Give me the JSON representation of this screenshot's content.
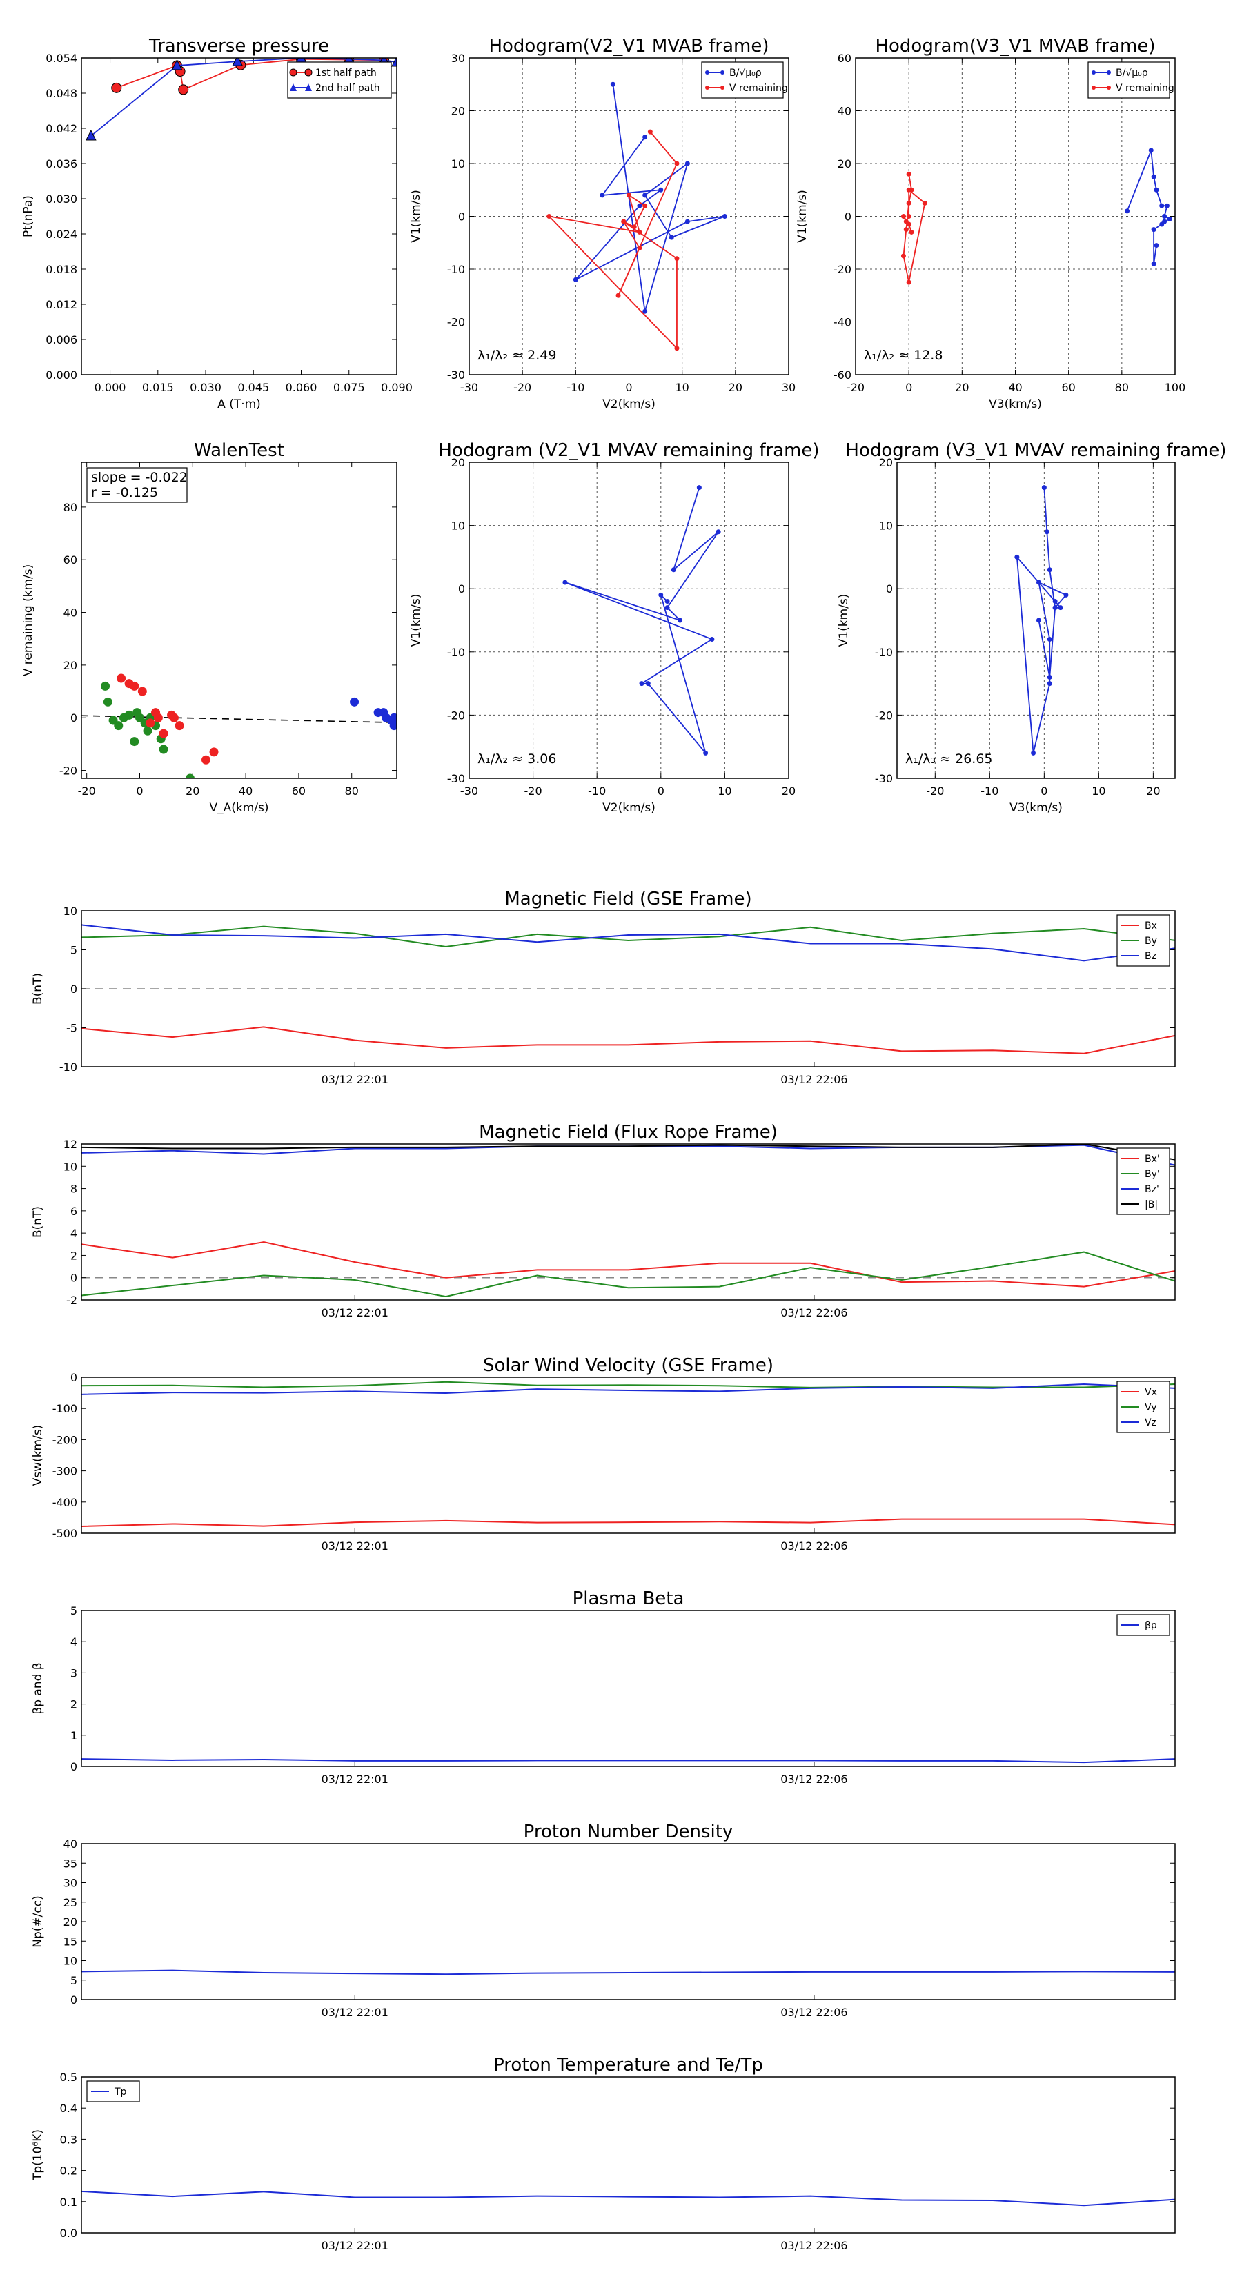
{
  "figure": {
    "title": "",
    "time_ticks": [
      "03/12 22:01",
      "03/12 22:06"
    ]
  },
  "colors": {
    "red": "#ee2222",
    "green": "#228b22",
    "blue": "#1c2bd6",
    "black": "#000000",
    "navy": "#1a237e"
  },
  "chart_data": [
    {
      "id": "tp",
      "type": "scatter",
      "title": "Transverse pressure",
      "xlabel": "A (T·m)",
      "ylabel": "Pt(nPa)",
      "grid": false,
      "xlim": [
        -0.009,
        0.09
      ],
      "ylim": [
        0,
        0.054
      ],
      "xticks": [
        0.0,
        0.015,
        0.03,
        0.045,
        0.06,
        0.075,
        0.09
      ],
      "xtick_labels": [
        "0.000",
        "0.015",
        "0.030",
        "0.045",
        "0.060",
        "0.075",
        "0.090"
      ],
      "yticks": [
        0,
        0.006,
        0.012,
        0.018,
        0.024,
        0.03,
        0.036,
        0.042,
        0.048,
        0.054
      ],
      "ytick_labels": [
        "0.000",
        "0.006",
        "0.012",
        "0.018",
        "0.024",
        "0.030",
        "0.036",
        "0.042",
        "0.048",
        "0.054"
      ],
      "legend": "top-right",
      "series": [
        {
          "name": "1st half path",
          "color": "red",
          "marker": "circle",
          "line": true,
          "x": [
            0.002,
            0.021,
            0.022,
            0.023,
            0.041,
            0.06,
            0.075,
            0.086
          ],
          "y": [
            0.0489,
            0.0527,
            0.0517,
            0.0486,
            0.0528,
            0.0538,
            0.0537,
            0.0536
          ]
        },
        {
          "name": "2nd half path",
          "color": "blue",
          "marker": "triangle",
          "line": true,
          "x": [
            -0.006,
            0.021,
            0.04,
            0.06,
            0.075,
            0.086,
            0.09
          ],
          "y": [
            0.0407,
            0.0527,
            0.0534,
            0.054,
            0.0538,
            0.0536,
            0.0533
          ]
        }
      ]
    },
    {
      "id": "h1",
      "type": "line",
      "title": "Hodogram(V2_V1 MVAB frame)",
      "xlabel": "V2(km/s)",
      "ylabel": "V1(km/s)",
      "grid": true,
      "xlim": [
        -30,
        30
      ],
      "ylim": [
        -30,
        30
      ],
      "xticks": [
        -30,
        -20,
        -10,
        0,
        10,
        20,
        30
      ],
      "yticks": [
        -30,
        -20,
        -10,
        0,
        10,
        20,
        30
      ],
      "legend": "top-right",
      "annotation": "λ₁/λ₂ ≈ 2.49",
      "series": [
        {
          "name": "B/√μ₀ρ",
          "color": "blue",
          "marker": "dot",
          "line": true,
          "x": [
            -3,
            3,
            11,
            3,
            8,
            18,
            11,
            -10,
            2,
            6,
            -5,
            3
          ],
          "y": [
            25,
            -18,
            10,
            4,
            -4,
            0,
            -1,
            -12,
            2,
            5,
            4,
            15
          ]
        },
        {
          "name": "V remaining",
          "color": "red",
          "marker": "dot",
          "line": true,
          "x": [
            4,
            9,
            -2,
            2,
            -1,
            9,
            9,
            -15,
            2,
            0,
            3,
            1,
            -1
          ],
          "y": [
            16,
            10,
            -15,
            -6,
            -1,
            -8,
            -25,
            0,
            -3,
            4,
            2,
            -2,
            -1
          ]
        }
      ]
    },
    {
      "id": "h2",
      "type": "line",
      "title": "Hodogram(V3_V1 MVAB frame)",
      "xlabel": "V3(km/s)",
      "ylabel": "V1(km/s)",
      "grid": true,
      "xlim": [
        -20,
        100
      ],
      "ylim": [
        -60,
        60
      ],
      "xticks": [
        -20,
        0,
        20,
        40,
        60,
        80,
        100
      ],
      "yticks": [
        -60,
        -40,
        -20,
        0,
        20,
        40,
        60
      ],
      "legend": "top-right",
      "annotation": "λ₁/λ₂ ≈ 12.8",
      "series": [
        {
          "name": "B/√μ₀ρ",
          "color": "blue",
          "marker": "dot",
          "line": true,
          "x": [
            82,
            91,
            92,
            93,
            95,
            97,
            96,
            98,
            96,
            95,
            92,
            92,
            93
          ],
          "y": [
            2,
            25,
            15,
            10,
            4,
            4,
            0,
            -1,
            -2,
            -3,
            -5,
            -18,
            -11
          ]
        },
        {
          "name": "V remaining",
          "color": "red",
          "marker": "dot",
          "line": true,
          "x": [
            0,
            1,
            0,
            -1,
            -2,
            0,
            6,
            0,
            0,
            -1,
            -2,
            0,
            1
          ],
          "y": [
            16,
            10,
            5,
            -5,
            -15,
            -25,
            5,
            10,
            0,
            -2,
            0,
            -3,
            -6
          ]
        }
      ]
    },
    {
      "id": "wt",
      "type": "scatter",
      "title": "WalenTest",
      "xlabel": "V_A(km/s)",
      "ylabel": "V remaining (km/s)",
      "grid": false,
      "xlim": [
        -22,
        97
      ],
      "ylim": [
        -23,
        97
      ],
      "xticks": [
        -20,
        0,
        20,
        40,
        60,
        80
      ],
      "yticks": [
        -20,
        0,
        20,
        40,
        60,
        80
      ],
      "fit": {
        "slope": -0.022,
        "intercept": 0.3
      },
      "annotation_lines": [
        "slope = -0.022",
        "r = -0.125"
      ],
      "series": [
        {
          "name": "",
          "color": "green",
          "x": [
            -13,
            -12,
            -8,
            -6,
            -4,
            -2,
            -1,
            0,
            2,
            4,
            6,
            8,
            9,
            19,
            -10,
            3
          ],
          "y": [
            12,
            6,
            -3,
            0,
            1,
            -9,
            2,
            0,
            -2,
            0,
            -3,
            -8,
            -12,
            -23,
            -1,
            -5
          ]
        },
        {
          "name": "",
          "color": "red",
          "x": [
            -7,
            -4,
            -2,
            1,
            4,
            6,
            7,
            9,
            12,
            13,
            15,
            25,
            28
          ],
          "y": [
            15,
            13,
            12,
            10,
            -2,
            2,
            0,
            -6,
            1,
            0,
            -3,
            -16,
            -13
          ]
        },
        {
          "name": "",
          "color": "blue",
          "x": [
            81,
            90,
            92,
            93,
            95,
            96,
            96,
            97
          ],
          "y": [
            6,
            2,
            2,
            0,
            -1,
            -3,
            0,
            -2
          ]
        }
      ]
    },
    {
      "id": "h3",
      "type": "line",
      "title": "Hodogram (V2_V1 MVAV remaining frame)",
      "xlabel": "V2(km/s)",
      "ylabel": "V1(km/s)",
      "grid": true,
      "xlim": [
        -30,
        20
      ],
      "ylim": [
        -30,
        20
      ],
      "xticks": [
        -30,
        -20,
        -10,
        0,
        10,
        20
      ],
      "yticks": [
        -30,
        -20,
        -10,
        0,
        10,
        20
      ],
      "annotation": "λ₁/λ₂ ≈ 3.06",
      "series": [
        {
          "name": "",
          "color": "blue",
          "marker": "dot",
          "line": true,
          "x": [
            6,
            2,
            9,
            1,
            3,
            -15,
            8,
            -3,
            -2,
            7,
            0,
            1
          ],
          "y": [
            16,
            3,
            9,
            -3,
            -5,
            1,
            -8,
            -15,
            -15,
            -26,
            -1,
            -2
          ]
        }
      ]
    },
    {
      "id": "h4",
      "type": "line",
      "title": "Hodogram (V3_V1 MVAV remaining frame)",
      "xlabel": "V3(km/s)",
      "ylabel": "V1(km/s)",
      "grid": true,
      "xlim": [
        -27,
        24
      ],
      "ylim": [
        -30,
        20
      ],
      "xticks": [
        -20,
        -10,
        0,
        10,
        20
      ],
      "yticks": [
        -30,
        -20,
        -10,
        0,
        10,
        20
      ],
      "annotation": "λ₁/λ₃ ≈ 26.65",
      "series": [
        {
          "name": "",
          "color": "blue",
          "marker": "dot",
          "line": true,
          "x": [
            0,
            0.5,
            1,
            2,
            3,
            2,
            -5,
            -2,
            1,
            1,
            -1,
            4,
            2,
            1,
            -1
          ],
          "y": [
            16,
            9,
            3,
            -3,
            -3,
            -2,
            5,
            -26,
            -15,
            -8,
            1,
            -1,
            -3,
            -14,
            -5
          ]
        }
      ]
    },
    {
      "id": "ts1",
      "type": "line",
      "title": "Magnetic Field (GSE Frame)",
      "xlabel": "",
      "ylabel": "B(nT)",
      "timeaxis": true,
      "ylim": [
        -10,
        10
      ],
      "yticks": [
        -10,
        -5,
        0,
        5,
        10
      ],
      "zero_line": true,
      "legend": "top-right",
      "x": [
        0,
        1,
        2,
        3,
        4,
        5,
        6,
        7,
        8,
        9,
        10,
        11,
        12
      ],
      "series": [
        {
          "name": "Bx",
          "color": "red",
          "values": [
            -5.1,
            -6.2,
            -4.9,
            -6.6,
            -7.6,
            -7.2,
            -7.2,
            -6.8,
            -6.7,
            -8.0,
            -7.9,
            -8.3,
            -6.0
          ]
        },
        {
          "name": "By",
          "color": "green",
          "values": [
            6.6,
            6.9,
            8.0,
            7.1,
            5.4,
            7.0,
            6.2,
            6.7,
            7.9,
            6.2,
            7.1,
            7.7,
            6.2
          ]
        },
        {
          "name": "Bz",
          "color": "blue",
          "values": [
            8.2,
            6.9,
            6.8,
            6.5,
            7.0,
            6.0,
            6.9,
            7.0,
            5.8,
            5.8,
            5.1,
            3.6,
            5.2
          ]
        }
      ]
    },
    {
      "id": "ts2",
      "type": "line",
      "title": "Magnetic Field (Flux Rope Frame)",
      "xlabel": "",
      "ylabel": "B(nT)",
      "timeaxis": true,
      "ylim": [
        -2,
        12
      ],
      "yticks": [
        -2,
        0,
        2,
        4,
        6,
        8,
        10,
        12
      ],
      "zero_line": true,
      "legend": "top-right",
      "x": [
        0,
        1,
        2,
        3,
        4,
        5,
        6,
        7,
        8,
        9,
        10,
        11,
        12
      ],
      "series": [
        {
          "name": "Bx'",
          "color": "red",
          "values": [
            3.0,
            1.8,
            3.2,
            1.4,
            0.0,
            0.7,
            0.7,
            1.3,
            1.3,
            -0.4,
            -0.3,
            -0.8,
            0.6
          ]
        },
        {
          "name": "By'",
          "color": "green",
          "values": [
            -1.6,
            -0.7,
            0.2,
            -0.2,
            -1.7,
            0.2,
            -0.9,
            -0.8,
            0.9,
            -0.2,
            1.0,
            2.3,
            -0.3
          ]
        },
        {
          "name": "Bz'",
          "color": "blue",
          "values": [
            11.2,
            11.4,
            11.1,
            11.6,
            11.6,
            11.8,
            11.8,
            11.8,
            11.6,
            11.7,
            11.7,
            11.9,
            10.1
          ]
        },
        {
          "name": "|B|",
          "color": "black",
          "values": [
            11.7,
            11.6,
            11.6,
            11.7,
            11.7,
            11.8,
            11.8,
            11.9,
            11.8,
            11.7,
            11.7,
            12.0,
            10.6
          ]
        }
      ]
    },
    {
      "id": "ts3",
      "type": "line",
      "title": "Solar Wind Velocity (GSE Frame)",
      "xlabel": "",
      "ylabel": "Vsw(km/s)",
      "timeaxis": true,
      "ylim": [
        -500,
        0
      ],
      "yticks": [
        -500,
        -400,
        -300,
        -200,
        -100,
        0
      ],
      "legend": "top-right",
      "x": [
        0,
        1,
        2,
        3,
        4,
        5,
        6,
        7,
        8,
        9,
        10,
        11,
        12
      ],
      "series": [
        {
          "name": "Vx",
          "color": "red",
          "values": [
            -478,
            -470,
            -477,
            -465,
            -460,
            -466,
            -465,
            -463,
            -466,
            -455,
            -455,
            -455,
            -472
          ]
        },
        {
          "name": "Vy",
          "color": "green",
          "values": [
            -27,
            -26,
            -32,
            -27,
            -15,
            -26,
            -25,
            -27,
            -33,
            -30,
            -32,
            -32,
            -22
          ]
        },
        {
          "name": "Vz",
          "color": "blue",
          "values": [
            -55,
            -49,
            -50,
            -45,
            -51,
            -38,
            -42,
            -45,
            -35,
            -31,
            -35,
            -22,
            -35
          ]
        }
      ]
    },
    {
      "id": "ts4",
      "type": "line",
      "title": "Plasma Beta",
      "xlabel": "",
      "ylabel": "βp and β",
      "timeaxis": true,
      "ylim": [
        0,
        5
      ],
      "yticks": [
        0,
        1,
        2,
        3,
        4,
        5
      ],
      "legend": "top-right",
      "x": [
        0,
        1,
        2,
        3,
        4,
        5,
        6,
        7,
        8,
        9,
        10,
        11,
        12
      ],
      "series": [
        {
          "name": "βp",
          "color": "blue",
          "values": [
            0.24,
            0.2,
            0.22,
            0.18,
            0.18,
            0.19,
            0.19,
            0.19,
            0.19,
            0.18,
            0.18,
            0.13,
            0.24
          ]
        }
      ]
    },
    {
      "id": "ts5",
      "type": "line",
      "title": "Proton Number Density",
      "xlabel": "",
      "ylabel": "Np(#/cc)",
      "timeaxis": true,
      "ylim": [
        0,
        40
      ],
      "yticks": [
        0,
        5,
        10,
        15,
        20,
        25,
        30,
        35,
        40
      ],
      "x": [
        0,
        1,
        2,
        3,
        4,
        5,
        6,
        7,
        8,
        9,
        10,
        11,
        12
      ],
      "series": [
        {
          "name": "",
          "color": "blue",
          "values": [
            7.2,
            7.5,
            6.9,
            6.7,
            6.5,
            6.8,
            6.9,
            7.0,
            7.1,
            7.1,
            7.1,
            7.2,
            7.1
          ]
        }
      ]
    },
    {
      "id": "ts6",
      "type": "line",
      "title": "Proton Temperature and Te/Tp",
      "xlabel": "",
      "ylabel": "Tp(10⁶K)",
      "timeaxis": true,
      "ylim": [
        0,
        0.5
      ],
      "yticks": [
        0,
        0.1,
        0.2,
        0.3,
        0.4,
        0.5
      ],
      "ytick_labels": [
        "0.0",
        "0.1",
        "0.2",
        "0.3",
        "0.4",
        "0.5"
      ],
      "legend": "top-left",
      "x": [
        0,
        1,
        2,
        3,
        4,
        5,
        6,
        7,
        8,
        9,
        10,
        11,
        12
      ],
      "series": [
        {
          "name": "Tp",
          "color": "blue",
          "values": [
            0.133,
            0.117,
            0.132,
            0.114,
            0.114,
            0.118,
            0.116,
            0.114,
            0.118,
            0.105,
            0.104,
            0.088,
            0.107
          ]
        }
      ]
    }
  ]
}
